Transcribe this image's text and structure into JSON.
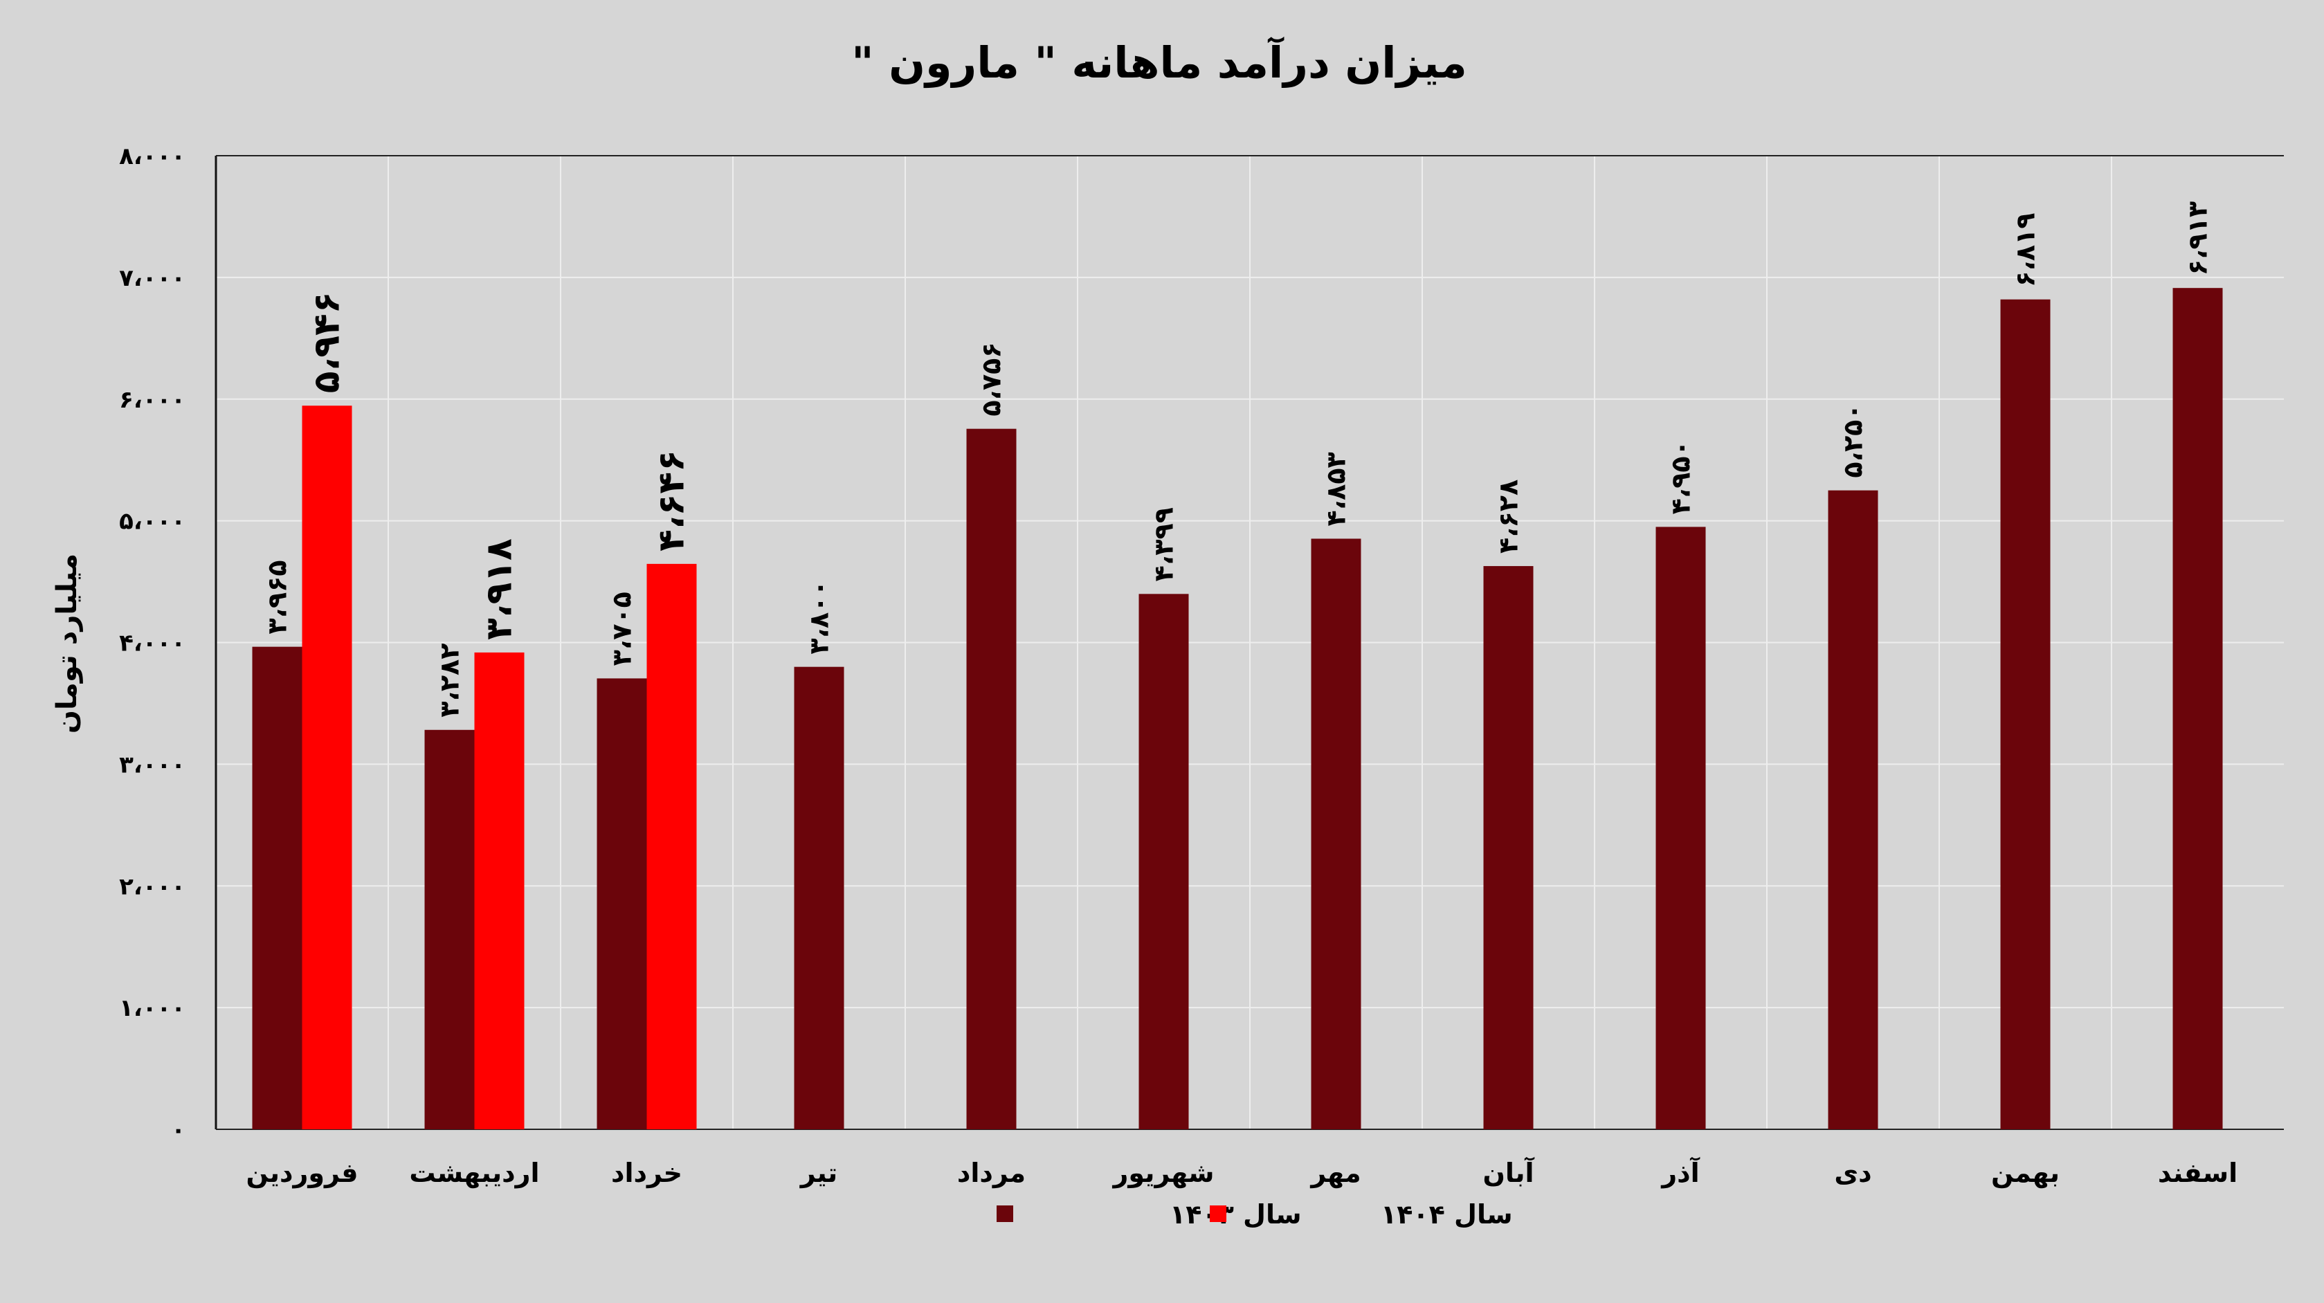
{
  "chart_data": {
    "type": "bar",
    "title": "میزان درآمد ماهانه \" مارون \"",
    "xlabel": "",
    "ylabel": "میلیارد تومان",
    "ylim": [
      0,
      8000
    ],
    "y_ticks": [
      0,
      1000,
      2000,
      3000,
      4000,
      5000,
      6000,
      7000,
      8000
    ],
    "y_tick_labels": [
      "۰",
      "۱،۰۰۰",
      "۲،۰۰۰",
      "۳،۰۰۰",
      "۴،۰۰۰",
      "۵،۰۰۰",
      "۶،۰۰۰",
      "۷،۰۰۰",
      "۸،۰۰۰"
    ],
    "grid": true,
    "legend_position": "bottom",
    "categories": [
      "فروردین",
      "اردیبهشت",
      "خرداد",
      "تیر",
      "مرداد",
      "شهریور",
      "مهر",
      "آبان",
      "آذر",
      "دی",
      "بهمن",
      "اسفند"
    ],
    "series": [
      {
        "name": "سال ۱۴۰۳",
        "color": "#6b050b",
        "values": [
          3965,
          3282,
          3705,
          3800,
          5756,
          4399,
          4853,
          4628,
          4950,
          5250,
          6819,
          6913
        ],
        "labels": [
          "۳،۹۶۵",
          "۳،۲۸۲",
          "۳،۷۰۵",
          "۳،۸۰۰",
          "۵،۷۵۶",
          "۴،۳۹۹",
          "۴،۸۵۳",
          "۴،۶۲۸",
          "۴،۹۵۰",
          "۵،۲۵۰",
          "۶،۸۱۹",
          "۶،۹۱۳"
        ]
      },
      {
        "name": "سال ۱۴۰۴",
        "color": "#ff0000",
        "values": [
          5946,
          3918,
          4646,
          null,
          null,
          null,
          null,
          null,
          null,
          null,
          null,
          null
        ],
        "labels": [
          "۵،۹۴۶",
          "۳،۹۱۸",
          "۴،۶۴۶",
          null,
          null,
          null,
          null,
          null,
          null,
          null,
          null,
          null
        ]
      }
    ]
  }
}
